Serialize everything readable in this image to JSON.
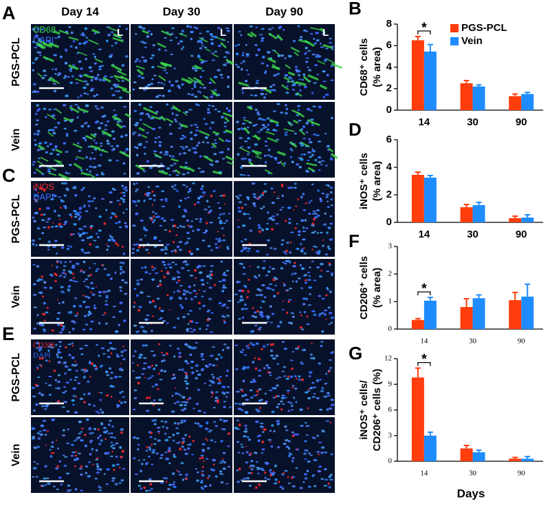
{
  "figure": {
    "columns": [
      "Day 14",
      "Day 30",
      "Day 90"
    ],
    "panels": [
      {
        "label": "A",
        "rows": [
          "PGS-PCL",
          "Vein"
        ],
        "stains": [
          "CD68",
          "DAPI"
        ],
        "lumen_marks": [
          "L",
          "L",
          "L"
        ]
      },
      {
        "label": "C",
        "rows": [
          "PGS-PCL",
          "Vein"
        ],
        "stains": [
          "iNOS",
          "DAPI"
        ]
      },
      {
        "label": "E",
        "rows": [
          "PGS-PCL",
          "Vein"
        ],
        "stains": [
          "CD206",
          "DAPI"
        ]
      }
    ]
  },
  "chart_data": [
    {
      "type": "bar",
      "label": "B",
      "ylabel": [
        "CD68⁺ cells",
        "(% area)"
      ],
      "categories": [
        "14",
        "30",
        "90"
      ],
      "ylim": [
        0,
        8
      ],
      "yticks": [
        0,
        2,
        4,
        6,
        8
      ],
      "series": [
        {
          "name": "PGS-PCL",
          "color": "#ff3d0d",
          "values": [
            6.5,
            2.5,
            1.3
          ],
          "errors": [
            0.35,
            0.25,
            0.2
          ]
        },
        {
          "name": "Vein",
          "color": "#1e8cff",
          "values": [
            5.45,
            2.2,
            1.5
          ],
          "errors": [
            0.65,
            0.15,
            0.15
          ]
        }
      ],
      "annotations": [
        {
          "text": "*",
          "category": "14"
        }
      ],
      "legend": "top-right"
    },
    {
      "type": "bar",
      "label": "D",
      "ylabel": [
        "iNOS⁺ cells",
        "(% area)"
      ],
      "categories": [
        "14",
        "30",
        "90"
      ],
      "ylim": [
        0,
        6
      ],
      "yticks": [
        0,
        2,
        4,
        6
      ],
      "series": [
        {
          "color": "#ff3d0d",
          "values": [
            3.45,
            1.1,
            0.3
          ],
          "errors": [
            0.2,
            0.2,
            0.15
          ]
        },
        {
          "color": "#1e8cff",
          "values": [
            3.25,
            1.25,
            0.35
          ],
          "errors": [
            0.15,
            0.2,
            0.2
          ]
        }
      ]
    },
    {
      "type": "bar",
      "label": "F",
      "ylabel": [
        "CD206⁺ cells",
        "(% area)"
      ],
      "categories": [
        "14",
        "30",
        "90"
      ],
      "ylim": [
        0,
        3
      ],
      "yticks": [
        0,
        1,
        2,
        3
      ],
      "series": [
        {
          "color": "#ff3d0d",
          "values": [
            0.33,
            0.8,
            1.05
          ],
          "errors": [
            0.05,
            0.3,
            0.28
          ]
        },
        {
          "color": "#1e8cff",
          "values": [
            1.03,
            1.12,
            1.18
          ],
          "errors": [
            0.12,
            0.12,
            0.45
          ]
        }
      ],
      "annotations": [
        {
          "text": "*",
          "category": "14"
        }
      ]
    },
    {
      "type": "bar",
      "label": "G",
      "ylabel": [
        "iNOS⁺ cells/",
        "CD206⁺ cells (%)"
      ],
      "xlabel": "Days",
      "categories": [
        "14",
        "30",
        "90"
      ],
      "ylim": [
        0,
        12
      ],
      "yticks": [
        0,
        3,
        6,
        9,
        12
      ],
      "series": [
        {
          "color": "#ff3d0d",
          "values": [
            9.8,
            1.5,
            0.3
          ],
          "errors": [
            1.1,
            0.35,
            0.15
          ]
        },
        {
          "color": "#1e8cff",
          "values": [
            3.0,
            1.05,
            0.3
          ],
          "errors": [
            0.4,
            0.25,
            0.25
          ]
        }
      ],
      "annotations": [
        {
          "text": "*",
          "category": "14"
        }
      ]
    }
  ]
}
